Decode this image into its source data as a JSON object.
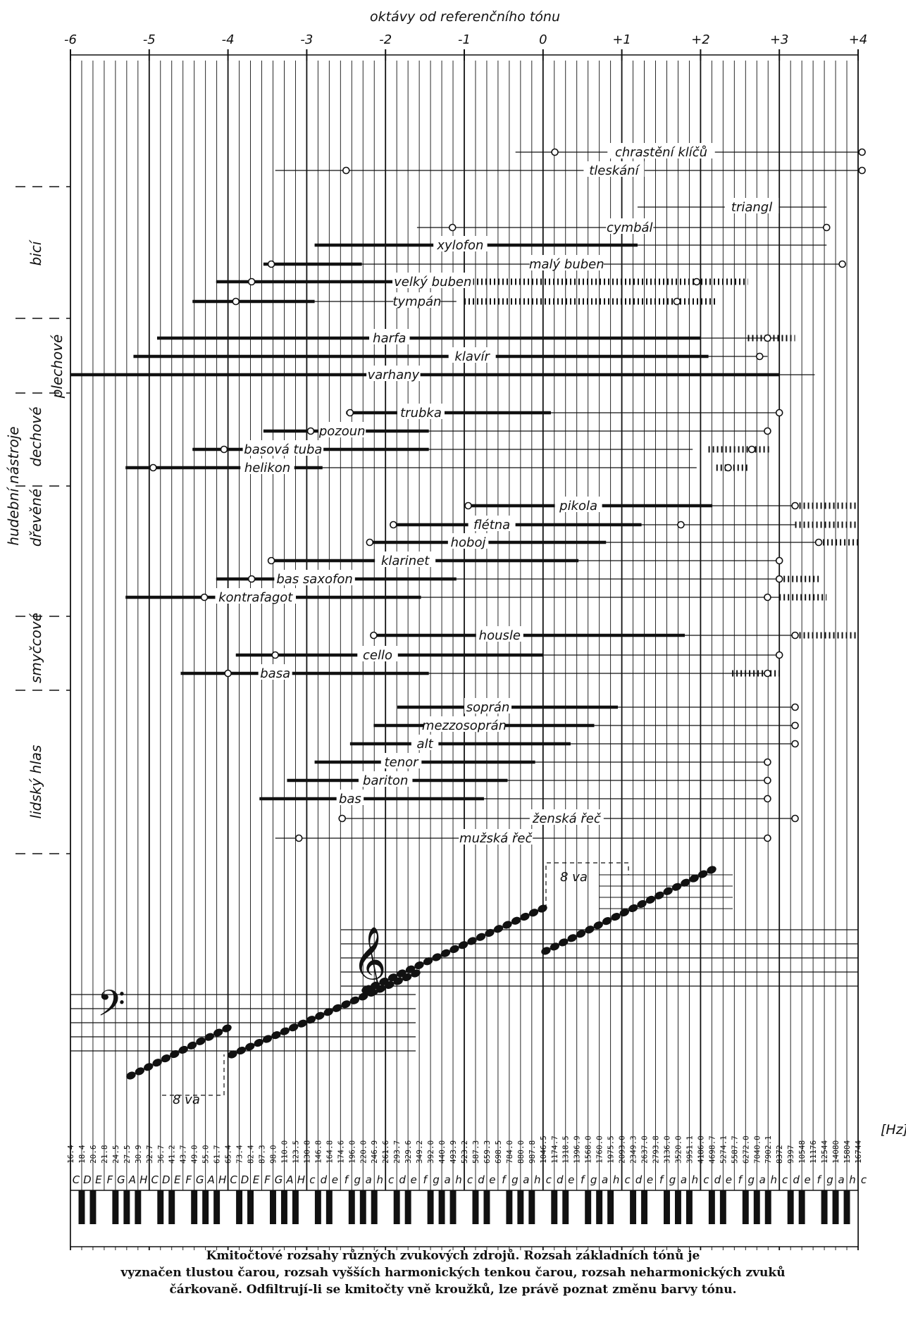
{
  "header": {
    "axis_title": "oktávy od referenčního tónu",
    "octave_labels": [
      "-6",
      "-5",
      "-4",
      "-3",
      "-2",
      "-1",
      "0",
      "+1",
      "+2",
      "+3",
      "+4"
    ]
  },
  "groups": {
    "outer": "hudební nástroje",
    "bici": "bicí",
    "dechove": "dechové",
    "plechove": "plechové",
    "drevene": "dřevěné",
    "smyccove": "smyčcové",
    "lidsky_hlas": "lidský hlas"
  },
  "rows": [
    {
      "label": "chrastění klíčů"
    },
    {
      "label": "tleskání"
    },
    {
      "label": "triangl"
    },
    {
      "label": "cymbál"
    },
    {
      "label": "xylofon"
    },
    {
      "label": "malý buben"
    },
    {
      "label": "velký buben"
    },
    {
      "label": "tympán"
    },
    {
      "label": "harfa"
    },
    {
      "label": "klavír"
    },
    {
      "label": "varhany"
    },
    {
      "label": "trubka"
    },
    {
      "label": "pozoun"
    },
    {
      "label": "basová tuba"
    },
    {
      "label": "helikon"
    },
    {
      "label": "pikola"
    },
    {
      "label": "flétna"
    },
    {
      "label": "hoboj"
    },
    {
      "label": "klarinet"
    },
    {
      "label": "bas saxofon"
    },
    {
      "label": "kontrafagot"
    },
    {
      "label": "housle"
    },
    {
      "label": "cello"
    },
    {
      "label": "basa"
    },
    {
      "label": "soprán"
    },
    {
      "label": "mezzosoprán"
    },
    {
      "label": "alt"
    },
    {
      "label": "tenor"
    },
    {
      "label": "bariton"
    },
    {
      "label": "bas"
    },
    {
      "label": "ženská řeč"
    },
    {
      "label": "mužská řeč"
    }
  ],
  "staff": {
    "ottava_low": "8 va",
    "ottava_high": "8 va"
  },
  "frequencies": [
    "16.4",
    "18.4",
    "20.6",
    "21.8",
    "24.5",
    "27.5",
    "30.9",
    "32.7",
    "36.7",
    "41.2",
    "43.7",
    "49.0",
    "55.0",
    "61.7",
    "65.4",
    "73.4",
    "82.4",
    "87.3",
    "98.0",
    "110.0",
    "123.5",
    "130.8",
    "146.8",
    "164.8",
    "174.6",
    "196.0",
    "220.0",
    "246.9",
    "261.6",
    "293.7",
    "329.6",
    "349.2",
    "392.0",
    "440.0",
    "493.9",
    "523.2",
    "587.3",
    "659.3",
    "698.5",
    "784.0",
    "880.0",
    "987.8",
    "1046.5",
    "1174.7",
    "1318.5",
    "1396.9",
    "1568.0",
    "1760.0",
    "1975.5",
    "2093.0",
    "2349.3",
    "2637.0",
    "2793.8",
    "3136.0",
    "3520.0",
    "3951.1",
    "4186.0",
    "4698.7",
    "5274.1",
    "5587.7",
    "6272.0",
    "7040.0",
    "7902.1",
    "8372",
    "9397",
    "10548",
    "11176",
    "12544",
    "14080",
    "15804",
    "16744"
  ],
  "hz_unit": "[Hz]",
  "note_names": [
    "C",
    "D",
    "E",
    "F",
    "G",
    "A",
    "H",
    "C",
    "D",
    "E",
    "F",
    "G",
    "A",
    "H",
    "C",
    "D",
    "E",
    "F",
    "G",
    "A",
    "H",
    "c",
    "d",
    "e",
    "f",
    "g",
    "a",
    "h",
    "c",
    "d",
    "e",
    "f",
    "g",
    "a",
    "h",
    "c",
    "d",
    "e",
    "f",
    "g",
    "a",
    "h",
    "c",
    "d",
    "e",
    "f",
    "g",
    "a",
    "h",
    "c",
    "d",
    "e",
    "f",
    "g",
    "a",
    "h",
    "c",
    "d",
    "e",
    "f",
    "g",
    "a",
    "h",
    "c",
    "d",
    "e",
    "f",
    "g",
    "a",
    "h",
    "c"
  ],
  "caption": "Kmitočtové rozsahy různých zvukových zdrojů. Rozsah základních tónů je vyznačen tlustou čarou, rozsah vyšších harmonických tenkou čarou, rozsah neharmonických zvuků čárkovaně. Odfiltrují-li se kmitočty vně kroužků, lze právě poznat změnu barvy tónu.",
  "colors": {
    "ink": "#111111",
    "paper": "#ffffff"
  }
}
